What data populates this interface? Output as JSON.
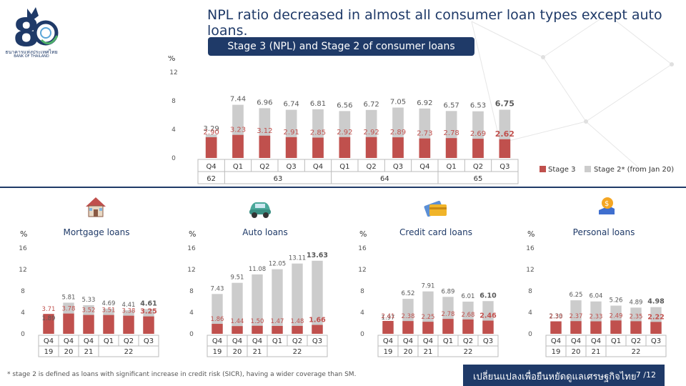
{
  "logo": {
    "caption_th": "ธนาคารแห่งประเทศไทย",
    "caption_en": "BANK OF THAILAND"
  },
  "headline": "NPL ratio decreased in almost all consumer loan types except auto loans.",
  "main_banner": "Stage 3 (NPL) and Stage 2 of consumer loans",
  "footnote": "* stage 2 is defined as loans with significant increase in credit risk (SICR), having a wider coverage than SM.",
  "footer": {
    "text": "เปลี่ยนแปลงเพื่อยืนหยัดดูแลเศรษฐกิจไทย",
    "page": "7 /12"
  },
  "colors": {
    "stage3": "#c0504d",
    "stage2": "#cccccc",
    "navy": "#1f3a68",
    "label3": "#c0504d",
    "label2": "#595959"
  },
  "icons": [
    "house-icon",
    "car-icon",
    "credit-card-icon",
    "money-bag-icon"
  ],
  "chart_data": [
    {
      "type": "bar",
      "unit_label": "%",
      "ylim": [
        0,
        12
      ],
      "yticks": [
        "0",
        "4",
        "8",
        "12"
      ],
      "quarters": [
        "Q4",
        "Q1",
        "Q2",
        "Q3",
        "Q4",
        "Q1",
        "Q2",
        "Q3",
        "Q4",
        "Q1",
        "Q2",
        "Q3"
      ],
      "year_groups": [
        {
          "label": "62",
          "span": 1
        },
        {
          "label": "63",
          "span": 4
        },
        {
          "label": "64",
          "span": 4
        },
        {
          "label": "65",
          "span": 3
        }
      ],
      "series": [
        {
          "name": "Stage 3",
          "values": [
            2.9,
            3.23,
            3.12,
            2.91,
            2.85,
            2.92,
            2.92,
            2.89,
            2.73,
            2.78,
            2.69,
            2.62
          ],
          "labels": [
            "2.90",
            "3.23",
            "3.12",
            "2.91",
            "2.85",
            "2.92",
            "2.92",
            "2.89",
            "2.73",
            "2.78",
            "2.69",
            "2.62"
          ]
        },
        {
          "name": "Stage 2* (from Jan 20)",
          "values": [
            3.29,
            7.44,
            6.96,
            6.74,
            6.81,
            6.56,
            6.72,
            7.05,
            6.92,
            6.57,
            6.53,
            6.75
          ],
          "labels": [
            "3.29",
            "7.44",
            "6.96",
            "6.74",
            "6.81",
            "6.56",
            "6.72",
            "7.05",
            "6.92",
            "6.57",
            "6.53",
            "6.75"
          ]
        }
      ],
      "legend_position": "bottom-right"
    },
    {
      "type": "bar",
      "title": "Mortgage loans",
      "icon": "house-icon",
      "unit_label": "%",
      "ylim": [
        0,
        16
      ],
      "yticks": [
        "0",
        "4",
        "8",
        "12",
        "16"
      ],
      "quarters": [
        "Q4",
        "Q4",
        "Q4",
        "Q1",
        "Q2",
        "Q3"
      ],
      "year_groups": [
        {
          "label": "19",
          "span": 1
        },
        {
          "label": "20",
          "span": 1
        },
        {
          "label": "21",
          "span": 1
        },
        {
          "label": "22",
          "span": 3
        }
      ],
      "series": [
        {
          "name": "Stage 3",
          "values": [
            3.71,
            3.78,
            3.52,
            3.51,
            3.38,
            3.25
          ],
          "labels": [
            "3.71",
            "3.78",
            "3.52",
            "3.51",
            "3.38",
            "3.25"
          ]
        },
        {
          "name": "Stage 2",
          "values": [
            1.89,
            5.81,
            5.33,
            4.69,
            4.41,
            4.61
          ],
          "labels": [
            "1.89",
            "5.81",
            "5.33",
            "4.69",
            "4.41",
            "4.61"
          ]
        }
      ]
    },
    {
      "type": "bar",
      "title": "Auto loans",
      "icon": "car-icon",
      "unit_label": "%",
      "ylim": [
        0,
        16
      ],
      "yticks": [
        "0",
        "4",
        "8",
        "12",
        "16"
      ],
      "quarters": [
        "Q4",
        "Q4",
        "Q4",
        "Q1",
        "Q2",
        "Q3"
      ],
      "year_groups": [
        {
          "label": "19",
          "span": 1
        },
        {
          "label": "20",
          "span": 1
        },
        {
          "label": "21",
          "span": 1
        },
        {
          "label": "22",
          "span": 3
        }
      ],
      "series": [
        {
          "name": "Stage 3",
          "values": [
            1.86,
            1.44,
            1.5,
            1.47,
            1.48,
            1.66
          ],
          "labels": [
            "1.86",
            "1.44",
            "1.50",
            "1.47",
            "1.48",
            "1.66"
          ]
        },
        {
          "name": "Stage 2",
          "values": [
            7.43,
            9.51,
            11.08,
            12.05,
            13.11,
            13.63
          ],
          "labels": [
            "7.43",
            "9.51",
            "11.08",
            "12.05",
            "13.11",
            "13.63"
          ]
        }
      ]
    },
    {
      "type": "bar",
      "title": "Credit card loans",
      "icon": "credit-card-icon",
      "unit_label": "%",
      "ylim": [
        0,
        16
      ],
      "yticks": [
        "0",
        "4",
        "8",
        "12",
        "16"
      ],
      "quarters": [
        "Q4",
        "Q4",
        "Q4",
        "Q1",
        "Q2",
        "Q3"
      ],
      "year_groups": [
        {
          "label": "19",
          "span": 1
        },
        {
          "label": "20",
          "span": 1
        },
        {
          "label": "21",
          "span": 1
        },
        {
          "label": "22",
          "span": 3
        }
      ],
      "series": [
        {
          "name": "Stage 3",
          "values": [
            2.41,
            2.38,
            2.25,
            2.78,
            2.68,
            2.46
          ],
          "labels": [
            "2.41",
            "2.38",
            "2.25",
            "2.78",
            "2.68",
            "2.46"
          ]
        },
        {
          "name": "Stage 2",
          "values": [
            1.97,
            6.52,
            7.91,
            6.89,
            6.01,
            6.1
          ],
          "labels": [
            "1.97",
            "6.52",
            "7.91",
            "6.89",
            "6.01",
            "6.10"
          ]
        }
      ]
    },
    {
      "type": "bar",
      "title": "Personal loans",
      "icon": "money-bag-icon",
      "unit_label": "%",
      "ylim": [
        0,
        16
      ],
      "yticks": [
        "0",
        "4",
        "8",
        "12",
        "16"
      ],
      "quarters": [
        "Q4",
        "Q4",
        "Q4",
        "Q1",
        "Q2",
        "Q3"
      ],
      "year_groups": [
        {
          "label": "19",
          "span": 1
        },
        {
          "label": "20",
          "span": 1
        },
        {
          "label": "21",
          "span": 1
        },
        {
          "label": "22",
          "span": 3
        }
      ],
      "series": [
        {
          "name": "Stage 3",
          "values": [
            2.33,
            2.37,
            2.33,
            2.49,
            2.35,
            2.22
          ],
          "labels": [
            "2.33",
            "2.37",
            "2.33",
            "2.49",
            "2.35",
            "2.22"
          ]
        },
        {
          "name": "Stage 2",
          "values": [
            2.3,
            6.25,
            6.04,
            5.26,
            4.89,
            4.98
          ],
          "labels": [
            "2.30",
            "6.25",
            "6.04",
            "5.26",
            "4.89",
            "4.98"
          ]
        }
      ]
    }
  ]
}
